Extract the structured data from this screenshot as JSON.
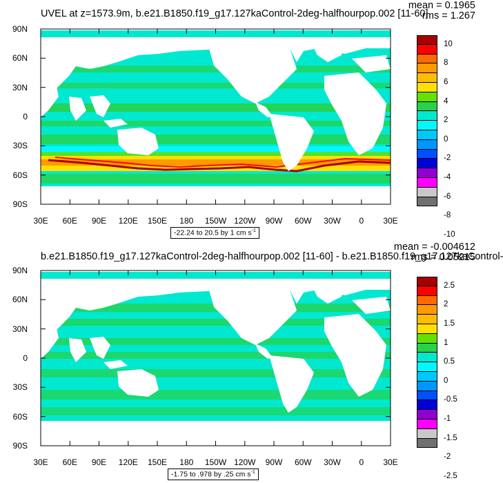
{
  "panels": [
    {
      "title": "UVEL at z=1573.9m, b.e21.B1850.f19_g17.127kaControl-2deg-halfhourpop.002 [11-60]",
      "mean_text": "mean = 0.1965",
      "rms_text": "rms = 1.267",
      "range_text": "-22.24 to 20.5 by 1 cm s",
      "range_exp": "-1",
      "colorbar_labels": [
        "10",
        "8",
        "6",
        "4",
        "2",
        "0",
        "-2",
        "-4",
        "-6",
        "-8",
        "-10"
      ],
      "colorbar_colors": [
        "#a80000",
        "#ff0000",
        "#ff6a00",
        "#ff9a00",
        "#ffbc00",
        "#ffe000",
        "#66e000",
        "#26d24a",
        "#00e8d0",
        "#00f8ff",
        "#00c8ff",
        "#0096ff",
        "#0050ff",
        "#0000d8",
        "#9000d0",
        "#ff00ff",
        "#c8c8c8",
        "#707070"
      ]
    },
    {
      "title": "b.e21.B1850.f19_g17.127kaControl-2deg-halfhourpop.002 [11-60] - b.e21.B1850.f19_g17.127kaControl-",
      "mean_text": "mean = -0.004612",
      "rms_text": "rms = 0.05215",
      "range_text": "-1.75 to .978 by .25 cm s",
      "range_exp": "-1",
      "colorbar_labels": [
        "2.5",
        "2",
        "1.5",
        "1",
        "0.5",
        "0",
        "-0.5",
        "-1",
        "-1.5",
        "-2",
        "-2.5"
      ],
      "colorbar_colors": [
        "#a80000",
        "#ff0000",
        "#ff6a00",
        "#ff9a00",
        "#ffbc00",
        "#ffe000",
        "#66e000",
        "#26d24a",
        "#00e8d0",
        "#00f8ff",
        "#00c8ff",
        "#0096ff",
        "#0050ff",
        "#0000d8",
        "#9000d0",
        "#ff00ff",
        "#c8c8c8",
        "#707070"
      ]
    }
  ],
  "axes": {
    "x_ticks": [
      "30E",
      "60E",
      "90E",
      "120E",
      "150E",
      "180",
      "150W",
      "120W",
      "90W",
      "60W",
      "30W",
      "0",
      "30E"
    ],
    "y_ticks": [
      "90N",
      "60N",
      "30N",
      "0",
      "30S",
      "60S",
      "90S"
    ]
  },
  "colors": {
    "ocean_main": "#00e8d0",
    "ocean_alt": "#26d24a",
    "land": "#ffffff"
  },
  "chart_data": [
    {
      "type": "heatmap",
      "title": "UVEL at z=1573.9m, b.e21.B1850.f19_g17.127kaControl-2deg-halfhourpop.002 [11-60]",
      "x_range": [
        "30E",
        "30E"
      ],
      "y_range": [
        "90S",
        "90N"
      ],
      "contour_min": -22.24,
      "contour_max": 20.5,
      "contour_interval": 1,
      "units": "cm s-1",
      "mean": 0.1965,
      "rms": 1.267,
      "colorbar_levels": [
        10,
        8,
        6,
        4,
        2,
        0,
        -2,
        -4,
        -6,
        -8,
        -10
      ]
    },
    {
      "type": "heatmap",
      "title": "b.e21.B1850.f19_g17.127kaControl-2deg-halfhourpop.002 [11-60] - b.e21.B1850.f19_g17.127kaControl-",
      "x_range": [
        "30E",
        "30E"
      ],
      "y_range": [
        "90S",
        "90N"
      ],
      "contour_min": -1.75,
      "contour_max": 0.978,
      "contour_interval": 0.25,
      "units": "cm s-1",
      "mean": -0.004612,
      "rms": 0.05215,
      "colorbar_levels": [
        2.5,
        2,
        1.5,
        1,
        0.5,
        0,
        -0.5,
        -1,
        -1.5,
        -2,
        -2.5
      ]
    }
  ]
}
